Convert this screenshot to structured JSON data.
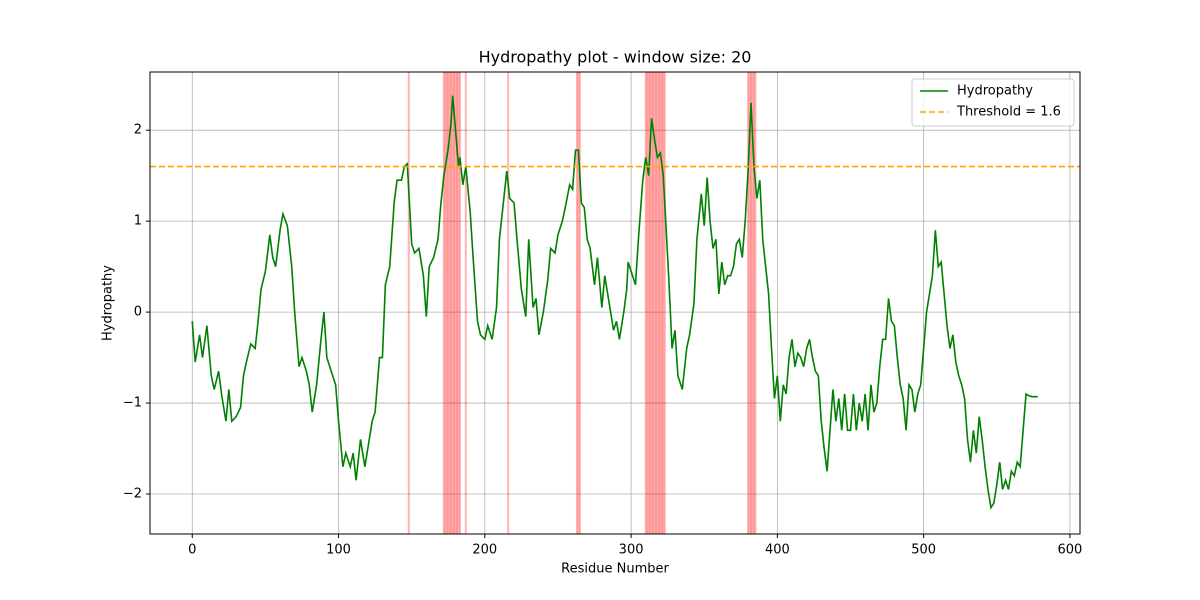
{
  "chart_data": {
    "type": "line",
    "title": "Hydropathy plot - window size: 20",
    "x_label": "Residue Number",
    "y_label": "Hydropathy",
    "xlim": [
      -28.9,
      606.9
    ],
    "ylim": [
      -2.44,
      2.64
    ],
    "xticks": [
      0,
      100,
      200,
      300,
      400,
      500,
      600
    ],
    "yticks": [
      {
        "value": -2,
        "label": "−2"
      },
      {
        "value": -1,
        "label": "−1"
      },
      0,
      1,
      2
    ],
    "grid": true,
    "legend": "upper right",
    "series": [
      {
        "name": "Hydropathy",
        "color": "#008000",
        "x": [
          0,
          2,
          5,
          7,
          10,
          13,
          15,
          18,
          20,
          23,
          25,
          27,
          30,
          33,
          35,
          37,
          40,
          43,
          45,
          47,
          50,
          53,
          55,
          57,
          60,
          62,
          65,
          68,
          70,
          73,
          75,
          78,
          80,
          82,
          85,
          88,
          90,
          92,
          95,
          98,
          100,
          103,
          105,
          108,
          110,
          112,
          115,
          118,
          120,
          123,
          125,
          128,
          130,
          132,
          135,
          138,
          140,
          143,
          145,
          147,
          150,
          152,
          155,
          158,
          160,
          162,
          165,
          168,
          170,
          172,
          175,
          177,
          178,
          180,
          182,
          183,
          185,
          187,
          190,
          192,
          195,
          197,
          200,
          202,
          205,
          208,
          210,
          213,
          215,
          217,
          220,
          222,
          225,
          228,
          230,
          233,
          235,
          237,
          240,
          243,
          245,
          248,
          250,
          253,
          255,
          258,
          260,
          262,
          264,
          266,
          268,
          270,
          272,
          275,
          277,
          280,
          282,
          285,
          288,
          290,
          292,
          295,
          297,
          298,
          300,
          303,
          305,
          308,
          310,
          312,
          314,
          316,
          318,
          320,
          322,
          324,
          326,
          328,
          330,
          332,
          335,
          338,
          340,
          343,
          345,
          348,
          350,
          352,
          354,
          356,
          358,
          360,
          362,
          364,
          366,
          368,
          370,
          372,
          374,
          376,
          378,
          380,
          382,
          384,
          386,
          388,
          390,
          392,
          394,
          396,
          398,
          400,
          402,
          404,
          406,
          408,
          410,
          412,
          414,
          416,
          418,
          420,
          422,
          424,
          426,
          428,
          430,
          432,
          434,
          436,
          438,
          440,
          442,
          444,
          446,
          448,
          450,
          452,
          454,
          456,
          458,
          460,
          462,
          464,
          466,
          468,
          470,
          472,
          474,
          476,
          478,
          480,
          482,
          484,
          486,
          488,
          490,
          492,
          494,
          496,
          498,
          500,
          502,
          504,
          506,
          508,
          510,
          512,
          514,
          516,
          518,
          520,
          522,
          524,
          526,
          528,
          530,
          532,
          534,
          536,
          538,
          540,
          542,
          544,
          546,
          548,
          550,
          552,
          554,
          556,
          558,
          560,
          562,
          564,
          566,
          568,
          570,
          572,
          574,
          578
        ],
        "values": [
          -0.1,
          -0.55,
          -0.25,
          -0.5,
          -0.15,
          -0.7,
          -0.85,
          -0.65,
          -0.9,
          -1.2,
          -0.85,
          -1.2,
          -1.15,
          -1.05,
          -0.7,
          -0.55,
          -0.35,
          -0.4,
          -0.1,
          0.25,
          0.45,
          0.85,
          0.6,
          0.5,
          0.9,
          1.08,
          0.95,
          0.5,
          0.0,
          -0.6,
          -0.5,
          -0.65,
          -0.8,
          -1.1,
          -0.8,
          -0.3,
          0.0,
          -0.5,
          -0.65,
          -0.8,
          -1.2,
          -1.7,
          -1.55,
          -1.7,
          -1.55,
          -1.85,
          -1.4,
          -1.7,
          -1.5,
          -1.2,
          -1.1,
          -0.5,
          -0.5,
          0.3,
          0.5,
          1.2,
          1.45,
          1.45,
          1.6,
          1.63,
          0.75,
          0.65,
          0.7,
          0.4,
          -0.05,
          0.5,
          0.6,
          0.8,
          1.2,
          1.5,
          1.8,
          2.1,
          2.38,
          2.0,
          1.6,
          1.7,
          1.4,
          1.6,
          1.1,
          0.6,
          -0.1,
          -0.25,
          -0.3,
          -0.15,
          -0.3,
          0.05,
          0.8,
          1.25,
          1.55,
          1.25,
          1.2,
          0.8,
          0.25,
          -0.05,
          0.8,
          0.05,
          0.15,
          -0.25,
          0.0,
          0.35,
          0.7,
          0.65,
          0.85,
          1.0,
          1.15,
          1.4,
          1.35,
          1.78,
          1.78,
          1.2,
          1.15,
          0.8,
          0.7,
          0.3,
          0.6,
          0.05,
          0.4,
          0.1,
          -0.2,
          -0.1,
          -0.3,
          0.0,
          0.25,
          0.55,
          0.45,
          0.3,
          0.8,
          1.45,
          1.7,
          1.5,
          2.13,
          1.9,
          1.7,
          1.75,
          1.5,
          0.9,
          0.3,
          -0.4,
          -0.2,
          -0.7,
          -0.85,
          -0.4,
          -0.25,
          0.1,
          0.8,
          1.3,
          0.95,
          1.48,
          1.0,
          0.7,
          0.8,
          0.2,
          0.55,
          0.3,
          0.4,
          0.4,
          0.5,
          0.75,
          0.8,
          0.6,
          1.0,
          1.55,
          2.3,
          1.6,
          1.25,
          1.45,
          0.8,
          0.5,
          0.2,
          -0.4,
          -0.95,
          -0.7,
          -1.2,
          -0.8,
          -0.9,
          -0.5,
          -0.3,
          -0.6,
          -0.45,
          -0.5,
          -0.6,
          -0.4,
          -0.3,
          -0.5,
          -0.65,
          -0.7,
          -1.2,
          -1.5,
          -1.75,
          -1.3,
          -0.85,
          -1.2,
          -0.95,
          -1.3,
          -0.9,
          -1.3,
          -1.3,
          -0.9,
          -1.3,
          -1.0,
          -1.2,
          -0.9,
          -1.3,
          -0.8,
          -1.1,
          -1.0,
          -0.6,
          -0.3,
          -0.3,
          0.15,
          -0.1,
          -0.15,
          -0.5,
          -0.8,
          -0.95,
          -1.3,
          -0.8,
          -0.85,
          -1.1,
          -0.9,
          -0.8,
          -0.4,
          0.0,
          0.2,
          0.4,
          0.9,
          0.5,
          0.55,
          0.2,
          -0.15,
          -0.4,
          -0.25,
          -0.55,
          -0.7,
          -0.8,
          -0.95,
          -1.4,
          -1.65,
          -1.3,
          -1.55,
          -1.15,
          -1.4,
          -1.7,
          -1.95,
          -2.15,
          -2.1,
          -1.9,
          -1.65,
          -1.95,
          -1.85,
          -1.95,
          -1.75,
          -1.8,
          -1.65,
          -1.7,
          -1.3,
          -0.9,
          -0.92,
          -0.93,
          -0.93
        ]
      }
    ],
    "threshold": {
      "name": "Threshold = 1.6",
      "value": 1.6,
      "color": "#ffa500"
    },
    "highlight_color": "#ff0000",
    "highlights": [
      148,
      172,
      173,
      174,
      175,
      176,
      177,
      178,
      179,
      180,
      181,
      182,
      183,
      187,
      216,
      263,
      264,
      265,
      310,
      311,
      312,
      313,
      314,
      315,
      316,
      317,
      318,
      319,
      320,
      321,
      322,
      323,
      380,
      381,
      382,
      383,
      384,
      385
    ]
  }
}
